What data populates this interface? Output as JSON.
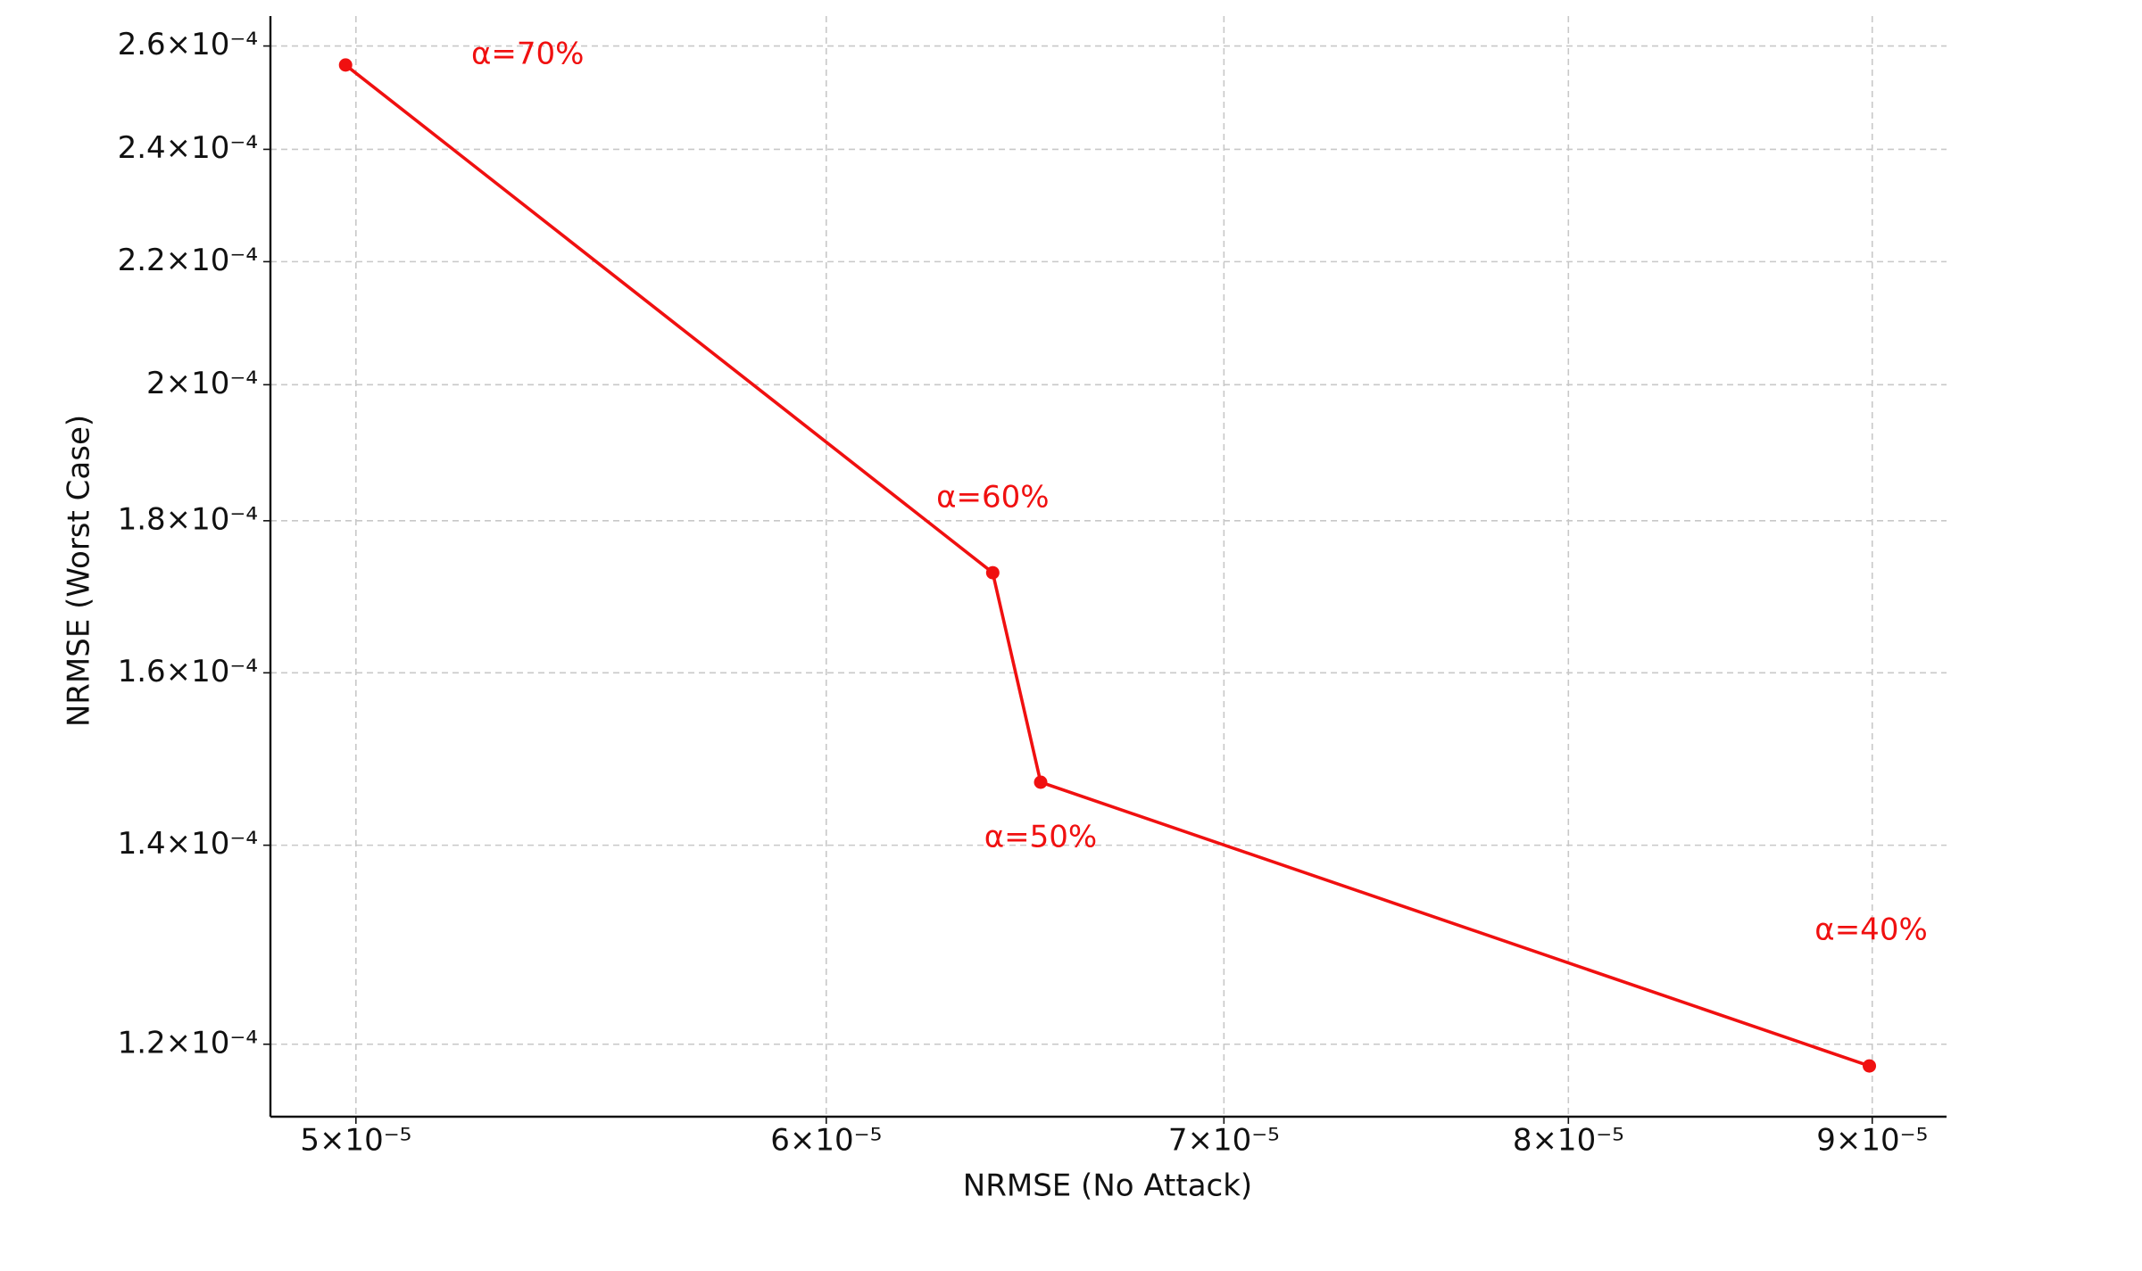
{
  "chart_data": {
    "type": "line",
    "xlabel": "NRMSE (No Attack)",
    "ylabel": "NRMSE (Worst Case)",
    "xscale": "log",
    "yscale": "log",
    "grid": true,
    "x": [
      4.98e-05,
      6.4e-05,
      6.52e-05,
      8.99e-05
    ],
    "series": [
      {
        "color": "#f01010",
        "values": [
          0.0002562,
          0.0001729,
          0.000147,
          0.000118
        ]
      }
    ],
    "annotations": [
      "α=70%",
      "α=60%",
      "α=50%",
      "α=40%"
    ],
    "xlim": [
      4.837e-05,
      9.263e-05
    ],
    "ylim": [
      0.00011345,
      0.0002661
    ],
    "xticks": [
      {
        "value": 5e-05,
        "label": "5×10⁻⁵"
      },
      {
        "value": 6e-05,
        "label": "6×10⁻⁵"
      },
      {
        "value": 7e-05,
        "label": "7×10⁻⁵"
      },
      {
        "value": 8e-05,
        "label": "8×10⁻⁵"
      },
      {
        "value": 9e-05,
        "label": "9×10⁻⁵"
      }
    ],
    "yticks": [
      {
        "value": 0.00012,
        "label": "1.2×10⁻⁴"
      },
      {
        "value": 0.00014,
        "label": "1.4×10⁻⁴"
      },
      {
        "value": 0.00016,
        "label": "1.6×10⁻⁴"
      },
      {
        "value": 0.00018,
        "label": "1.8×10⁻⁴"
      },
      {
        "value": 0.0002,
        "label": "2×10⁻⁴"
      },
      {
        "value": 0.00022,
        "label": "2.2×10⁻⁴"
      },
      {
        "value": 0.00024,
        "label": "2.4×10⁻⁴"
      },
      {
        "value": 0.00026,
        "label": "2.6×10⁻⁴"
      }
    ]
  }
}
